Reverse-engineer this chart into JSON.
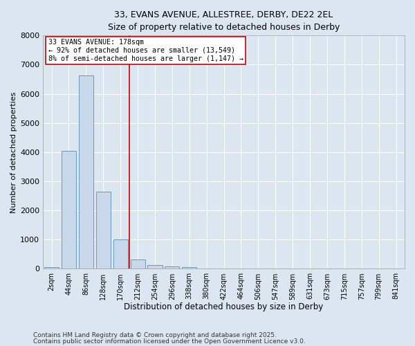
{
  "title1": "33, EVANS AVENUE, ALLESTREE, DERBY, DE22 2EL",
  "title2": "Size of property relative to detached houses in Derby",
  "xlabel": "Distribution of detached houses by size in Derby",
  "ylabel": "Number of detached properties",
  "bin_labels": [
    "2sqm",
    "44sqm",
    "86sqm",
    "128sqm",
    "170sqm",
    "212sqm",
    "254sqm",
    "296sqm",
    "338sqm",
    "380sqm",
    "422sqm",
    "464sqm",
    "506sqm",
    "547sqm",
    "589sqm",
    "631sqm",
    "673sqm",
    "715sqm",
    "757sqm",
    "799sqm",
    "841sqm"
  ],
  "bar_values": [
    50,
    4050,
    6620,
    2650,
    1000,
    330,
    120,
    90,
    60,
    0,
    0,
    0,
    0,
    0,
    0,
    0,
    0,
    0,
    0,
    0,
    0
  ],
  "bar_color": "#c8d8ea",
  "bar_edgecolor": "#6699bb",
  "bar_linewidth": 0.7,
  "vline_x": 4.5,
  "vline_color": "#cc0000",
  "vline_linewidth": 1.2,
  "annotation_line1": "33 EVANS AVENUE: 178sqm",
  "annotation_line2": "← 92% of detached houses are smaller (13,549)",
  "annotation_line3": "8% of semi-detached houses are larger (1,147) →",
  "annotation_box_edgecolor": "#cc0000",
  "annotation_box_facecolor": "white",
  "ylim": [
    0,
    8000
  ],
  "yticks": [
    0,
    1000,
    2000,
    3000,
    4000,
    5000,
    6000,
    7000,
    8000
  ],
  "background_color": "#dce6f0",
  "axes_background": "#dce6f0",
  "grid_color": "white",
  "footer1": "Contains HM Land Registry data © Crown copyright and database right 2025.",
  "footer2": "Contains public sector information licensed under the Open Government Licence v3.0."
}
